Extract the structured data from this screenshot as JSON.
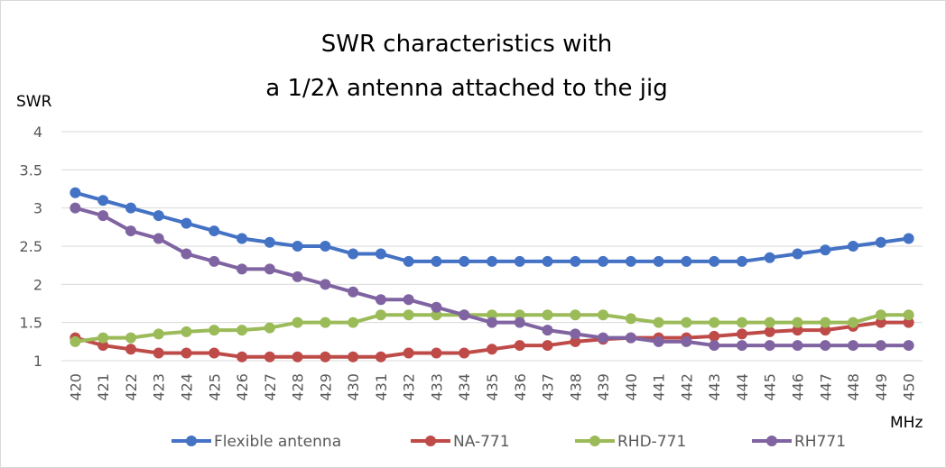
{
  "chart_data": {
    "type": "line",
    "title_lines": [
      "SWR characteristics with",
      "a 1/2λ antenna attached to the jig"
    ],
    "ylabel": "SWR",
    "xlabel": "MHz",
    "ylim": [
      1,
      4
    ],
    "yticks": [
      "1",
      "1.5",
      "2",
      "2.5",
      "3",
      "3.5",
      "4"
    ],
    "ytick_values": [
      1,
      1.5,
      2,
      2.5,
      3,
      3.5,
      4
    ],
    "categories": [
      "420",
      "421",
      "422",
      "423",
      "424",
      "425",
      "426",
      "427",
      "428",
      "429",
      "430",
      "431",
      "432",
      "433",
      "434",
      "435",
      "436",
      "437",
      "438",
      "439",
      "440",
      "441",
      "442",
      "443",
      "444",
      "445",
      "446",
      "447",
      "448",
      "449",
      "450"
    ],
    "grid": "horizontal",
    "legend_position": "bottom",
    "series": [
      {
        "name": "Flexible antenna",
        "color": "#4472C4",
        "values": [
          3.2,
          3.1,
          3.0,
          2.9,
          2.8,
          2.7,
          2.6,
          2.55,
          2.5,
          2.5,
          2.4,
          2.4,
          2.3,
          2.3,
          2.3,
          2.3,
          2.3,
          2.3,
          2.3,
          2.3,
          2.3,
          2.3,
          2.3,
          2.3,
          2.3,
          2.35,
          2.4,
          2.45,
          2.5,
          2.55,
          2.6
        ]
      },
      {
        "name": "NA-771",
        "color": "#BE4B48",
        "values": [
          1.3,
          1.2,
          1.15,
          1.1,
          1.1,
          1.1,
          1.05,
          1.05,
          1.05,
          1.05,
          1.05,
          1.05,
          1.1,
          1.1,
          1.1,
          1.15,
          1.2,
          1.2,
          1.25,
          1.28,
          1.3,
          1.3,
          1.3,
          1.32,
          1.35,
          1.38,
          1.4,
          1.4,
          1.45,
          1.5,
          1.5
        ]
      },
      {
        "name": "RHD-771",
        "color": "#9BBB59",
        "values": [
          1.25,
          1.3,
          1.3,
          1.35,
          1.38,
          1.4,
          1.4,
          1.43,
          1.5,
          1.5,
          1.5,
          1.6,
          1.6,
          1.6,
          1.6,
          1.6,
          1.6,
          1.6,
          1.6,
          1.6,
          1.55,
          1.5,
          1.5,
          1.5,
          1.5,
          1.5,
          1.5,
          1.5,
          1.5,
          1.6,
          1.6
        ]
      },
      {
        "name": "RH771",
        "color": "#8064A2",
        "values": [
          3.0,
          2.9,
          2.7,
          2.6,
          2.4,
          2.3,
          2.2,
          2.2,
          2.1,
          2.0,
          1.9,
          1.8,
          1.8,
          1.7,
          1.6,
          1.5,
          1.5,
          1.4,
          1.35,
          1.3,
          1.3,
          1.25,
          1.25,
          1.2,
          1.2,
          1.2,
          1.2,
          1.2,
          1.2,
          1.2,
          1.2
        ]
      }
    ]
  }
}
